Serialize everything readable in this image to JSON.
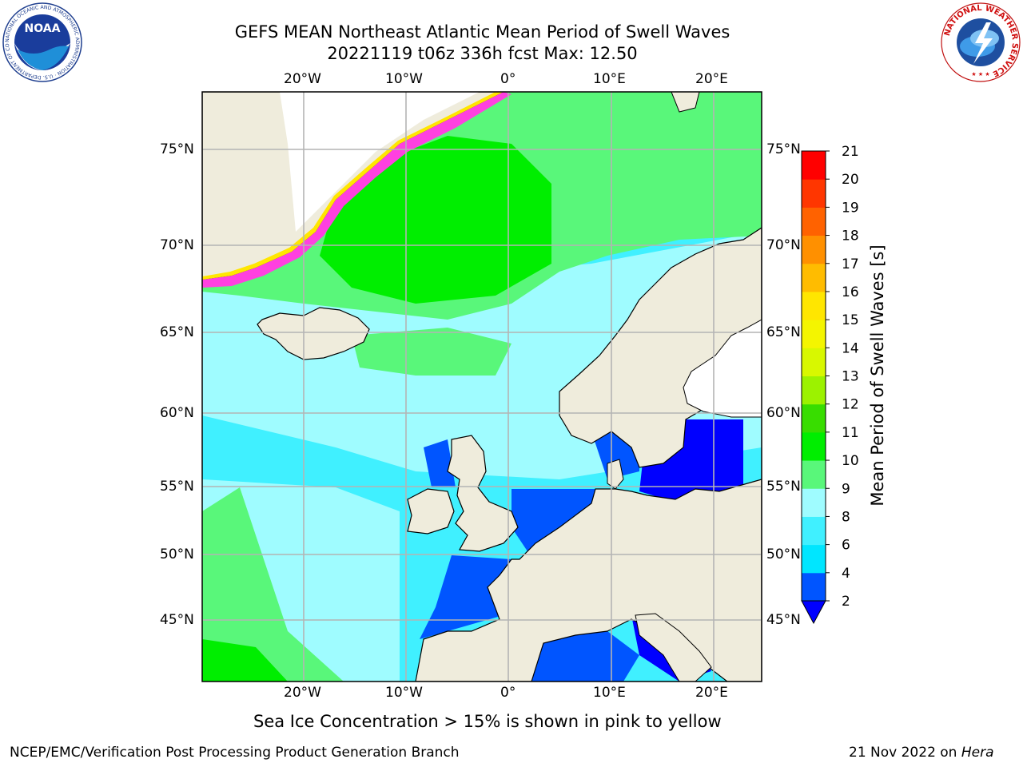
{
  "title": {
    "line1": "GEFS MEAN Northeast Atlantic Mean Period of Swell Waves",
    "line2": "20221119 t06z 336h fcst   Max: 12.50"
  },
  "map": {
    "lon_labels": [
      "20°W",
      "10°W",
      "0°",
      "10°E",
      "20°E"
    ],
    "lat_labels": [
      "75°N",
      "70°N",
      "65°N",
      "60°N",
      "55°N",
      "50°N",
      "45°N"
    ],
    "land_color": "#efecdc",
    "grid_color": "#b4b4b4"
  },
  "colorbar": {
    "label": "Mean Period of Swell Waves [s]",
    "ticks": [
      "2",
      "4",
      "6",
      "8",
      "9",
      "10",
      "11",
      "12",
      "13",
      "14",
      "15",
      "16",
      "17",
      "18",
      "19",
      "20",
      "21"
    ],
    "colors": [
      "#0055ff",
      "#00e6ff",
      "#40f0ff",
      "#9ffcff",
      "#59f77a",
      "#00ee00",
      "#38dd00",
      "#9cf200",
      "#d8f800",
      "#f4f500",
      "#ffe600",
      "#ffbc00",
      "#ff9000",
      "#ff6200",
      "#ff3600",
      "#ff0000"
    ],
    "under_color": "#0000ff"
  },
  "caption": "Sea Ice Concentration > 15% is shown in pink to yellow",
  "footer": {
    "left": "NCEP/EMC/Verification Post Processing Product Generation Branch",
    "right_date": "21 Nov 2022 on ",
    "right_host": "Hera"
  },
  "logos": {
    "noaa_text": "NOAA",
    "noaa_ring": "NATIONAL OCEANIC AND ATMOSPHERIC ADMINISTRATION · U.S. DEPARTMENT OF COMMERCE",
    "nws_ring": "NATIONAL WEATHER SERVICE"
  }
}
